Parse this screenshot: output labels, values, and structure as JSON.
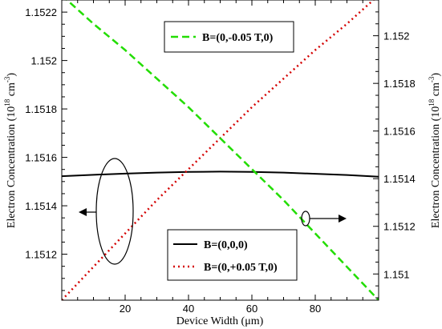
{
  "chart_data": {
    "type": "line",
    "xlabel": "Device Width (μm)",
    "ylabel_left": "Electron Concentration (10^18 cm^-3)",
    "ylabel_right": "Electron Concentration (10^18 cm^-3)",
    "ylabel_parts": {
      "prefix": "Electron Concentration (10",
      "exp1": "18",
      "mid": " cm",
      "exp2": "-3",
      "suffix": ")"
    },
    "xlabel_parts": {
      "prefix": "Device Width (",
      "mu": "μ",
      "suffix": "m)"
    },
    "xlim": [
      0,
      100
    ],
    "ylim_left": [
      1.15101,
      1.15225
    ],
    "ylim_right": [
      1.15089,
      1.15215
    ],
    "x_ticks": [
      "20",
      "40",
      "60",
      "80"
    ],
    "y_ticks_left": [
      "1.1512",
      "1.1514",
      "1.1516",
      "1.1518",
      "1.152",
      "1.1522"
    ],
    "y_ticks_right": [
      "1.151",
      "1.1512",
      "1.1514",
      "1.1516",
      "1.1518",
      "1.152"
    ],
    "grid": false,
    "series": [
      {
        "name": "B=(0,0,0)",
        "axis": "left",
        "color": "#000000",
        "style": "solid",
        "x": [
          0,
          10,
          20,
          30,
          40,
          50,
          60,
          70,
          80,
          90,
          100
        ],
        "y": [
          1.151522,
          1.151528,
          1.151533,
          1.151537,
          1.15154,
          1.151541,
          1.15154,
          1.151537,
          1.151532,
          1.151527,
          1.15152
        ]
      },
      {
        "name": "B=(0,+0.05 T,0)",
        "axis": "right",
        "color": "#d40000",
        "style": "dotted",
        "x": [
          0,
          10,
          20,
          30,
          40,
          50,
          60,
          70,
          80,
          90,
          100
        ],
        "y": [
          1.15089,
          1.15103,
          1.15117,
          1.15131,
          1.15144,
          1.15157,
          1.1517,
          1.15182,
          1.15194,
          1.15205,
          1.15217
        ]
      },
      {
        "name": "B=(0,-0.05 T,0)",
        "axis": "right",
        "color": "#22dd00",
        "style": "dashed",
        "x": [
          0,
          10,
          20,
          30,
          40,
          50,
          60,
          70,
          80,
          90,
          100
        ],
        "y": [
          1.15217,
          1.15205,
          1.15194,
          1.15182,
          1.1517,
          1.15157,
          1.15144,
          1.15131,
          1.15117,
          1.15103,
          1.15089
        ]
      }
    ],
    "legend_top": [
      "B=(0,-0.05 T,0)"
    ],
    "legend_bottom": [
      "B=(0,0,0)",
      "B=(0,+0.05 T,0)"
    ]
  }
}
